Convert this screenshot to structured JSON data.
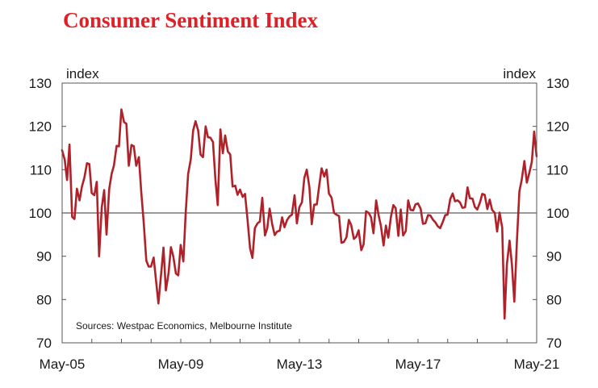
{
  "chart_data": {
    "type": "line",
    "title": "Consumer Sentiment Index",
    "ylabel_left": "index",
    "ylabel_right": "index",
    "ylim": [
      70,
      130
    ],
    "yticks": [
      70,
      80,
      90,
      100,
      110,
      120,
      130
    ],
    "xlim": [
      2005.333,
      2021.333
    ],
    "xticks": [
      {
        "label": "May-05",
        "x": 2005.333
      },
      {
        "label": "May-09",
        "x": 2009.333
      },
      {
        "label": "May-13",
        "x": 2013.333
      },
      {
        "label": "May-17",
        "x": 2017.333
      },
      {
        "label": "May-21",
        "x": 2021.333
      }
    ],
    "reference_line": 100,
    "source": "Sources: Westpac Economics, Melbourne Institute",
    "series": [
      {
        "name": "Consumer Sentiment Index",
        "color": "#b0222a",
        "points": [
          [
            2005.33,
            114.5
          ],
          [
            2005.42,
            112.3
          ],
          [
            2005.5,
            107.6
          ],
          [
            2005.58,
            115.8
          ],
          [
            2005.67,
            99.1
          ],
          [
            2005.75,
            98.6
          ],
          [
            2005.83,
            105.6
          ],
          [
            2005.92,
            102.9
          ],
          [
            2006.0,
            106.1
          ],
          [
            2006.08,
            108.1
          ],
          [
            2006.17,
            111.5
          ],
          [
            2006.25,
            111.3
          ],
          [
            2006.33,
            104.6
          ],
          [
            2006.42,
            104.1
          ],
          [
            2006.5,
            107.2
          ],
          [
            2006.58,
            90.0
          ],
          [
            2006.67,
            101.3
          ],
          [
            2006.75,
            105.3
          ],
          [
            2006.83,
            95.0
          ],
          [
            2006.92,
            105.5
          ],
          [
            2007.0,
            109.0
          ],
          [
            2007.08,
            111.0
          ],
          [
            2007.17,
            115.5
          ],
          [
            2007.25,
            115.4
          ],
          [
            2007.33,
            123.9
          ],
          [
            2007.42,
            121.0
          ],
          [
            2007.5,
            120.6
          ],
          [
            2007.58,
            110.9
          ],
          [
            2007.67,
            115.7
          ],
          [
            2007.75,
            115.4
          ],
          [
            2007.83,
            110.9
          ],
          [
            2007.92,
            112.9
          ],
          [
            2008.0,
            104.9
          ],
          [
            2008.08,
            98.0
          ],
          [
            2008.17,
            89.0
          ],
          [
            2008.25,
            87.6
          ],
          [
            2008.33,
            87.6
          ],
          [
            2008.42,
            89.7
          ],
          [
            2008.5,
            84.3
          ],
          [
            2008.58,
            79.1
          ],
          [
            2008.67,
            85.8
          ],
          [
            2008.75,
            92.0
          ],
          [
            2008.83,
            82.1
          ],
          [
            2008.92,
            86.0
          ],
          [
            2009.0,
            92.1
          ],
          [
            2009.08,
            90.0
          ],
          [
            2009.17,
            86.0
          ],
          [
            2009.25,
            85.6
          ],
          [
            2009.33,
            92.6
          ],
          [
            2009.42,
            88.8
          ],
          [
            2009.5,
            100.0
          ],
          [
            2009.58,
            109.0
          ],
          [
            2009.67,
            112.4
          ],
          [
            2009.75,
            119.0
          ],
          [
            2009.83,
            121.2
          ],
          [
            2009.92,
            119.0
          ],
          [
            2010.0,
            113.5
          ],
          [
            2010.08,
            112.9
          ],
          [
            2010.17,
            120.0
          ],
          [
            2010.25,
            117.5
          ],
          [
            2010.33,
            117.4
          ],
          [
            2010.42,
            116.4
          ],
          [
            2010.5,
            107.8
          ],
          [
            2010.58,
            101.8
          ],
          [
            2010.67,
            119.3
          ],
          [
            2010.75,
            113.8
          ],
          [
            2010.83,
            117.9
          ],
          [
            2010.92,
            114.2
          ],
          [
            2011.0,
            113.5
          ],
          [
            2011.08,
            106.1
          ],
          [
            2011.17,
            106.3
          ],
          [
            2011.25,
            104.2
          ],
          [
            2011.33,
            105.4
          ],
          [
            2011.42,
            103.7
          ],
          [
            2011.5,
            104.4
          ],
          [
            2011.58,
            98.7
          ],
          [
            2011.67,
            91.8
          ],
          [
            2011.75,
            89.6
          ],
          [
            2011.83,
            96.5
          ],
          [
            2011.92,
            97.6
          ],
          [
            2012.0,
            98.0
          ],
          [
            2012.08,
            103.5
          ],
          [
            2012.17,
            94.8
          ],
          [
            2012.25,
            96.5
          ],
          [
            2012.33,
            101.0
          ],
          [
            2012.42,
            97.3
          ],
          [
            2012.5,
            94.9
          ],
          [
            2012.58,
            95.7
          ],
          [
            2012.67,
            95.9
          ],
          [
            2012.75,
            99.0
          ],
          [
            2012.83,
            96.7
          ],
          [
            2012.92,
            98.4
          ],
          [
            2013.0,
            99.2
          ],
          [
            2013.08,
            99.6
          ],
          [
            2013.17,
            104.1
          ],
          [
            2013.25,
            97.6
          ],
          [
            2013.33,
            101.3
          ],
          [
            2013.42,
            102.5
          ],
          [
            2013.5,
            108.1
          ],
          [
            2013.58,
            110.0
          ],
          [
            2013.67,
            105.9
          ],
          [
            2013.75,
            97.4
          ],
          [
            2013.83,
            101.9
          ],
          [
            2013.92,
            102.0
          ],
          [
            2014.0,
            106.2
          ],
          [
            2014.08,
            110.3
          ],
          [
            2014.17,
            108.4
          ],
          [
            2014.25,
            110.0
          ],
          [
            2014.33,
            104.5
          ],
          [
            2014.42,
            103.5
          ],
          [
            2014.5,
            100.0
          ],
          [
            2014.58,
            99.6
          ],
          [
            2014.67,
            99.3
          ],
          [
            2014.75,
            93.1
          ],
          [
            2014.83,
            93.3
          ],
          [
            2014.92,
            94.4
          ],
          [
            2015.0,
            98.4
          ],
          [
            2015.08,
            97.2
          ],
          [
            2015.17,
            94.0
          ],
          [
            2015.25,
            94.5
          ],
          [
            2015.33,
            96.0
          ],
          [
            2015.42,
            91.4
          ],
          [
            2015.5,
            92.8
          ],
          [
            2015.58,
            100.4
          ],
          [
            2015.67,
            100.0
          ],
          [
            2015.75,
            99.0
          ],
          [
            2015.83,
            95.3
          ],
          [
            2015.92,
            102.9
          ],
          [
            2016.0,
            99.6
          ],
          [
            2016.08,
            97.0
          ],
          [
            2016.17,
            92.5
          ],
          [
            2016.25,
            97.1
          ],
          [
            2016.33,
            94.3
          ],
          [
            2016.42,
            99.1
          ],
          [
            2016.5,
            101.8
          ],
          [
            2016.58,
            101.1
          ],
          [
            2016.67,
            94.7
          ],
          [
            2016.75,
            100.8
          ],
          [
            2016.83,
            94.8
          ],
          [
            2016.92,
            95.8
          ],
          [
            2017.0,
            102.9
          ],
          [
            2017.08,
            100.7
          ],
          [
            2017.17,
            100.6
          ],
          [
            2017.25,
            102.0
          ],
          [
            2017.33,
            102.2
          ],
          [
            2017.42,
            101.0
          ],
          [
            2017.5,
            97.5
          ],
          [
            2017.58,
            97.6
          ],
          [
            2017.67,
            99.5
          ],
          [
            2017.75,
            99.4
          ],
          [
            2017.83,
            98.5
          ],
          [
            2017.92,
            97.8
          ],
          [
            2018.0,
            96.9
          ],
          [
            2018.08,
            96.5
          ],
          [
            2018.17,
            98.0
          ],
          [
            2018.25,
            99.5
          ],
          [
            2018.33,
            99.6
          ],
          [
            2018.42,
            103.2
          ],
          [
            2018.5,
            104.5
          ],
          [
            2018.58,
            102.7
          ],
          [
            2018.67,
            102.9
          ],
          [
            2018.75,
            102.4
          ],
          [
            2018.83,
            101.2
          ],
          [
            2018.92,
            101.3
          ],
          [
            2019.0,
            105.9
          ],
          [
            2019.08,
            103.4
          ],
          [
            2019.17,
            103.3
          ],
          [
            2019.25,
            101.4
          ],
          [
            2019.33,
            100.8
          ],
          [
            2019.42,
            102.4
          ],
          [
            2019.5,
            104.4
          ],
          [
            2019.58,
            104.2
          ],
          [
            2019.67,
            100.9
          ],
          [
            2019.75,
            103.1
          ],
          [
            2019.83,
            100.7
          ],
          [
            2019.92,
            100.0
          ],
          [
            2020.0,
            95.7
          ],
          [
            2020.08,
            100.1
          ],
          [
            2020.17,
            96.6
          ],
          [
            2020.25,
            75.6
          ],
          [
            2020.33,
            88.1
          ],
          [
            2020.42,
            93.6
          ],
          [
            2020.5,
            87.9
          ],
          [
            2020.58,
            79.5
          ],
          [
            2020.67,
            93.8
          ],
          [
            2020.75,
            105.0
          ],
          [
            2020.83,
            107.7
          ],
          [
            2020.92,
            112.0
          ],
          [
            2021.0,
            107.0
          ],
          [
            2021.08,
            109.1
          ],
          [
            2021.17,
            111.8
          ],
          [
            2021.25,
            118.8
          ],
          [
            2021.33,
            113.1
          ]
        ]
      }
    ]
  }
}
